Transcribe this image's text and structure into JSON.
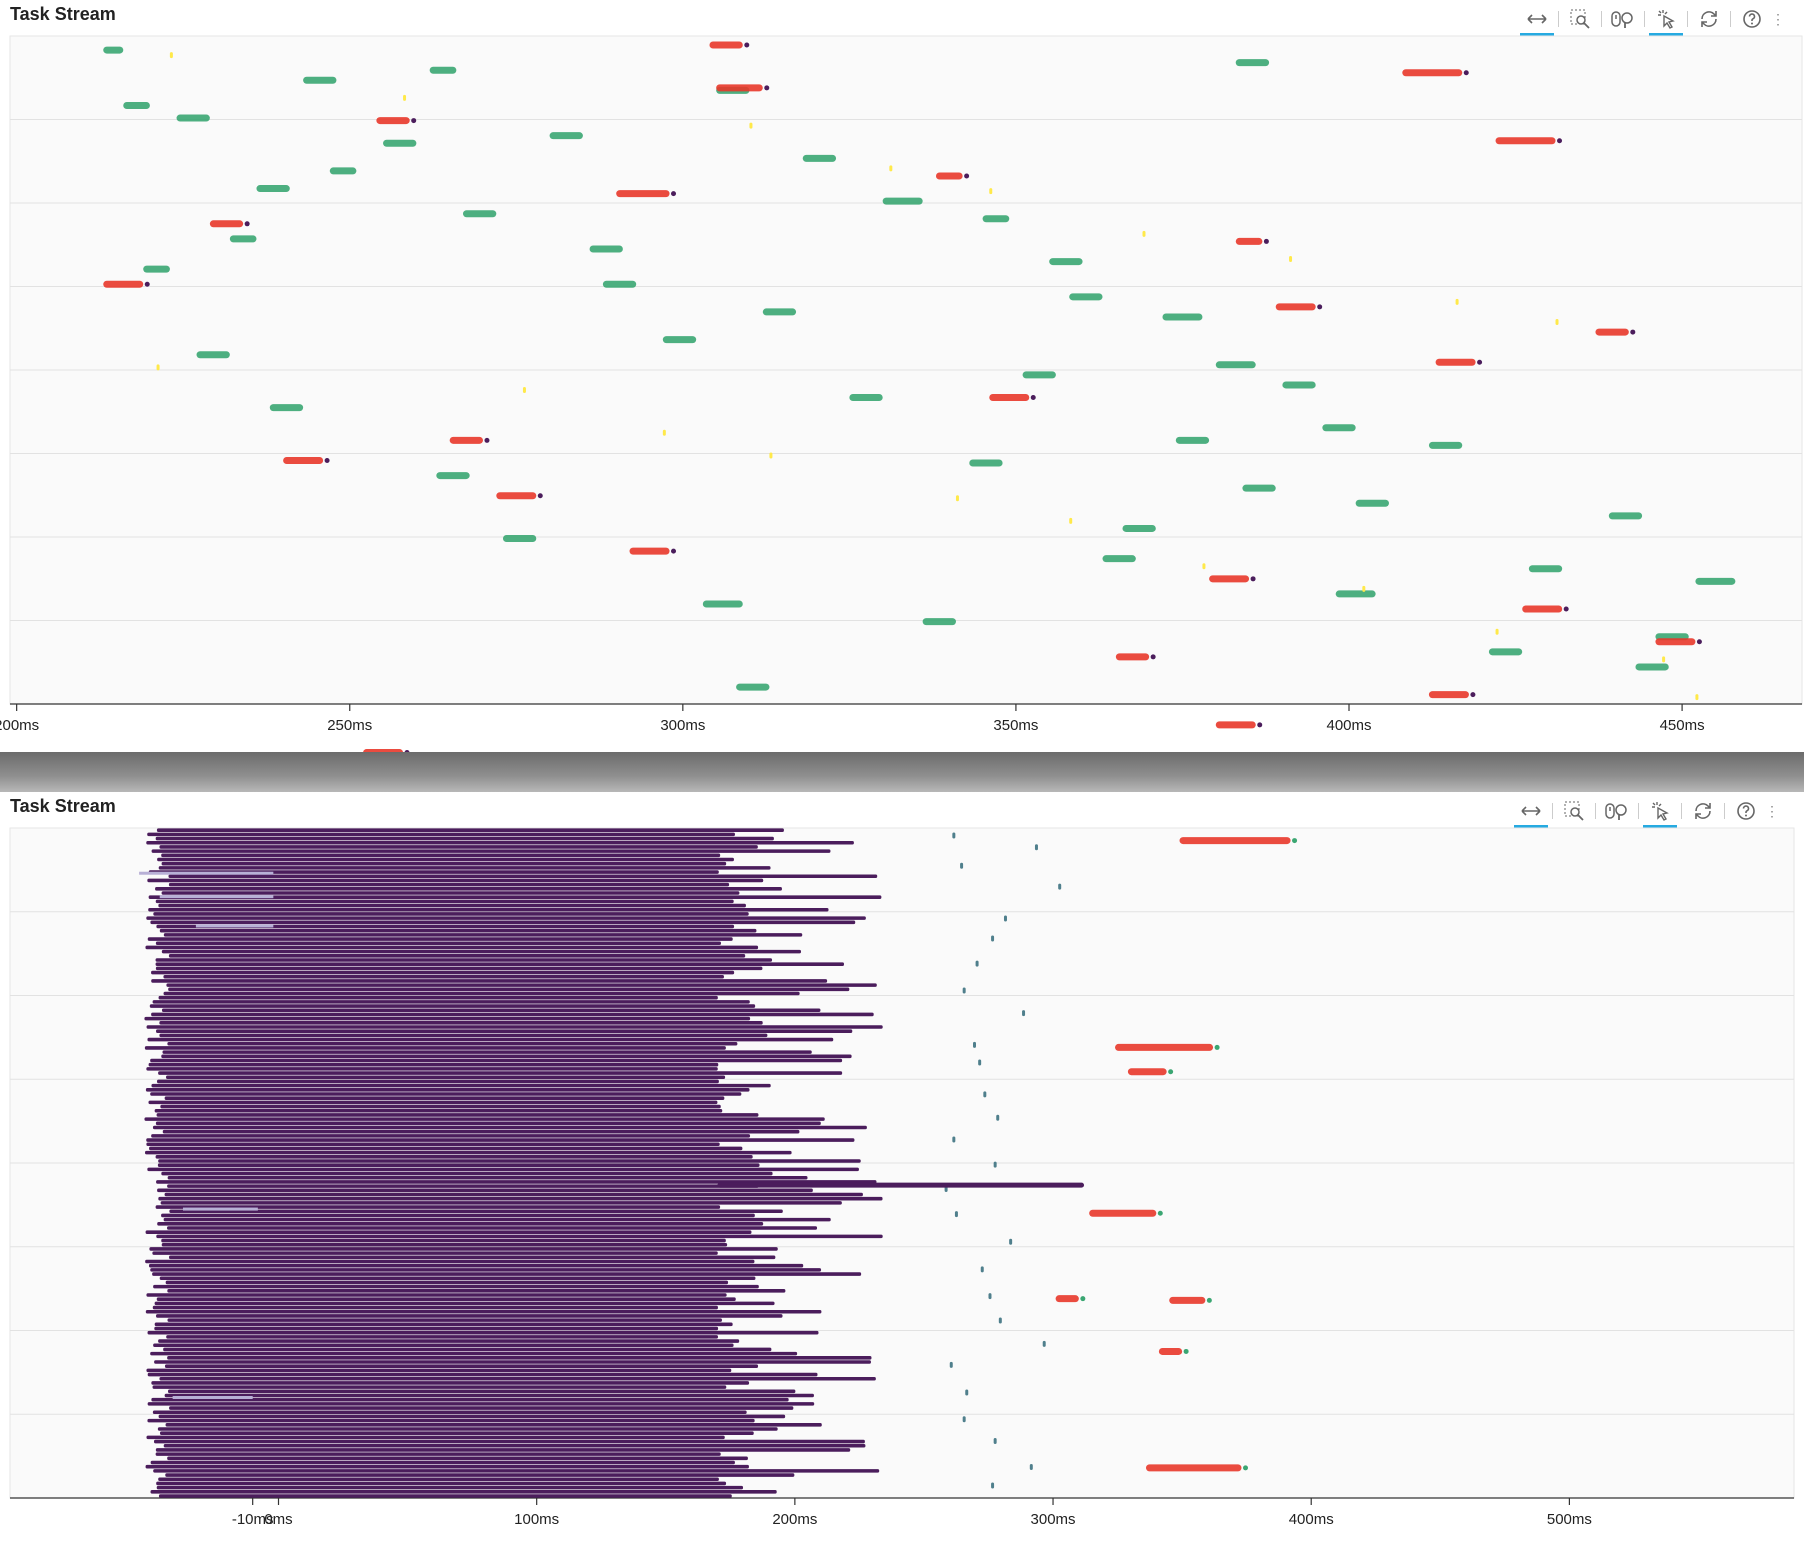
{
  "colors": {
    "green": "#3aa672",
    "red": "#e8372a",
    "yellow": "#ffe94a",
    "purple": "#4b1d5c",
    "lavender": "#b8b0d6",
    "teal": "#4f7f8c"
  },
  "top_panel": {
    "title": "Task Stream",
    "toolbar": [
      "pan-icon",
      "box-zoom-icon",
      "wheel-zoom-icon",
      "tap-icon",
      "reset-icon",
      "help-icon"
    ]
  },
  "bottom_panel": {
    "title": "Task Stream",
    "toolbar": [
      "pan-icon",
      "box-zoom-icon",
      "wheel-zoom-icon",
      "tap-icon",
      "reset-icon",
      "help-icon"
    ]
  },
  "chart_data": [
    {
      "type": "bar",
      "title": "Task Stream",
      "orientation": "horizontal-timeline",
      "xlim": [
        199,
        468
      ],
      "x_ticks": [
        200,
        250,
        300,
        350,
        400,
        450
      ],
      "x_tick_labels": [
        "200ms",
        "250ms",
        "300ms",
        "350ms",
        "400ms",
        "450ms"
      ],
      "grid": "horizontal",
      "series": [
        {
          "name": "",
          "color": "green",
          "values": [
            [
              0.4,
              213,
              216
            ],
            [
              2.6,
              216,
              220
            ],
            [
              5.2,
              247,
              251
            ],
            [
              7.9,
              232,
              236
            ],
            [
              9.1,
              219,
              223
            ],
            [
              12.5,
              227,
              232
            ],
            [
              14.6,
              238,
              243
            ],
            [
              17.3,
              263,
              268
            ],
            [
              19.8,
              273,
              278
            ],
            [
              22.4,
              303,
              309
            ],
            [
              1.2,
              262,
              266
            ],
            [
              3.8,
              280,
              285
            ],
            [
              6.4,
              330,
              336
            ],
            [
              8.8,
              355,
              360
            ],
            [
              11.0,
              372,
              378
            ],
            [
              13.7,
              390,
              395
            ],
            [
              16.1,
              412,
              417
            ],
            [
              18.9,
              439,
              444
            ],
            [
              21.5,
              452,
              458
            ],
            [
              24.3,
              421,
              426
            ],
            [
              2.0,
              305,
              310
            ],
            [
              4.7,
              318,
              323
            ],
            [
              7.1,
              345,
              349
            ],
            [
              10.2,
              358,
              363
            ],
            [
              12.9,
              380,
              386
            ],
            [
              15.4,
              396,
              401
            ],
            [
              17.8,
              384,
              389
            ],
            [
              20.6,
              363,
              368
            ],
            [
              23.1,
              336,
              341
            ],
            [
              25.7,
              308,
              313
            ],
            [
              1.6,
              243,
              248
            ],
            [
              4.1,
              255,
              260
            ],
            [
              6.9,
              267,
              272
            ],
            [
              9.7,
              288,
              293
            ],
            [
              11.9,
              297,
              302
            ],
            [
              14.2,
              325,
              330
            ],
            [
              16.8,
              343,
              348
            ],
            [
              19.4,
              366,
              371
            ],
            [
              22.0,
              398,
              404
            ],
            [
              24.9,
              443,
              448
            ],
            [
              3.1,
              224,
              229
            ],
            [
              5.9,
              236,
              241
            ],
            [
              8.3,
              286,
              291
            ],
            [
              10.8,
              312,
              317
            ],
            [
              13.3,
              351,
              356
            ],
            [
              15.9,
              374,
              379
            ],
            [
              18.4,
              401,
              406
            ],
            [
              21.0,
              427,
              432
            ],
            [
              23.7,
              446,
              451
            ],
            [
              0.9,
              383,
              388
            ]
          ]
        },
        {
          "name": "",
          "color": "red",
          "values": [
            [
              0.2,
              304,
              309
            ],
            [
              1.3,
              408,
              417
            ],
            [
              1.9,
              305,
              312
            ],
            [
              3.2,
              254,
              259
            ],
            [
              4.0,
              422,
              431
            ],
            [
              5.4,
              338,
              342
            ],
            [
              6.1,
              290,
              298
            ],
            [
              7.3,
              229,
              234
            ],
            [
              8.0,
              383,
              387
            ],
            [
              9.7,
              213,
              219
            ],
            [
              10.6,
              389,
              395
            ],
            [
              11.6,
              437,
              442
            ],
            [
              12.8,
              413,
              419
            ],
            [
              14.2,
              346,
              352
            ],
            [
              15.9,
              265,
              270
            ],
            [
              16.7,
              240,
              246
            ],
            [
              18.1,
              272,
              278
            ],
            [
              20.3,
              292,
              298
            ],
            [
              21.4,
              379,
              385
            ],
            [
              22.6,
              426,
              432
            ],
            [
              23.9,
              446,
              452
            ],
            [
              24.5,
              365,
              370
            ],
            [
              26.0,
              412,
              418
            ],
            [
              27.2,
              380,
              386
            ],
            [
              28.3,
              252,
              258
            ]
          ]
        },
        {
          "name": "",
          "color": "yellow",
          "values": [
            [
              0.6,
              223,
              224
            ],
            [
              3.4,
              310,
              311
            ],
            [
              6.0,
              346,
              347
            ],
            [
              8.7,
              391,
              392
            ],
            [
              11.2,
              431,
              432
            ],
            [
              13.9,
              276,
              277
            ],
            [
              16.5,
              313,
              314
            ],
            [
              19.1,
              358,
              359
            ],
            [
              21.8,
              402,
              403
            ],
            [
              24.6,
              447,
              448
            ],
            [
              2.3,
              258,
              259
            ],
            [
              5.1,
              331,
              332
            ],
            [
              7.7,
              369,
              370
            ],
            [
              10.4,
              416,
              417
            ],
            [
              13.0,
              221,
              222
            ],
            [
              15.6,
              297,
              298
            ],
            [
              18.2,
              341,
              342
            ],
            [
              20.9,
              378,
              379
            ],
            [
              23.5,
              422,
              423
            ],
            [
              26.1,
              452,
              453
            ]
          ]
        }
      ]
    },
    {
      "type": "bar",
      "title": "Task Stream",
      "orientation": "horizontal-timeline",
      "xlim": [
        -104,
        587
      ],
      "x_ticks": [
        -10,
        0,
        100,
        200,
        300,
        400,
        500
      ],
      "x_tick_labels": [
        "-10ms",
        "0ms",
        "100ms",
        "200ms",
        "300ms",
        "400ms",
        "500ms"
      ],
      "grid": "horizontal",
      "block": {
        "rows": 160,
        "start_range": [
          -52,
          -42
        ],
        "end_range": [
          170,
          235
        ]
      },
      "series": [
        {
          "name": "",
          "color": "red",
          "values": [
            [
              1.5,
              349,
              392
            ],
            [
              26.2,
              324,
              362
            ],
            [
              29.1,
              329,
              344
            ],
            [
              46.0,
              314,
              340
            ],
            [
              56.2,
              301,
              310
            ],
            [
              56.4,
              345,
              359
            ],
            [
              62.5,
              341,
              350
            ],
            [
              76.4,
              336,
              373
            ]
          ]
        },
        {
          "name": "",
          "color": "teal",
          "values": [
            [
              0.9,
              261
            ],
            [
              2.3,
              293
            ],
            [
              4.5,
              264
            ],
            [
              7.0,
              302
            ],
            [
              10.8,
              281
            ],
            [
              13.2,
              276
            ],
            [
              16.2,
              270
            ],
            [
              19.4,
              265
            ],
            [
              22.1,
              288
            ],
            [
              25.9,
              269
            ],
            [
              28.0,
              271
            ],
            [
              31.8,
              273
            ],
            [
              34.6,
              278
            ],
            [
              37.2,
              261
            ],
            [
              40.2,
              277
            ],
            [
              43.1,
              258
            ],
            [
              46.1,
              262
            ],
            [
              49.4,
              283
            ],
            [
              52.7,
              272
            ],
            [
              55.9,
              275
            ],
            [
              58.8,
              279
            ],
            [
              61.6,
              296
            ],
            [
              64.1,
              260
            ],
            [
              67.4,
              266
            ],
            [
              70.6,
              265
            ],
            [
              73.2,
              277
            ],
            [
              76.3,
              291
            ],
            [
              78.5,
              276
            ]
          ]
        },
        {
          "name": "",
          "color": "lavender",
          "values": [
            [
              5.4,
              -54,
              -2
            ],
            [
              8.2,
              -46,
              -2
            ],
            [
              11.7,
              -32,
              -2
            ],
            [
              45.5,
              -37,
              -8
            ],
            [
              68.0,
              -41,
              -10
            ]
          ]
        }
      ]
    }
  ]
}
